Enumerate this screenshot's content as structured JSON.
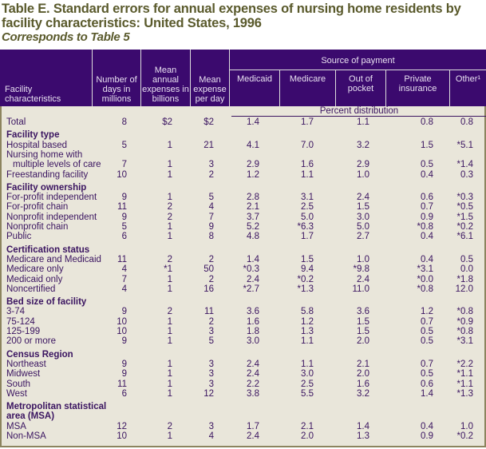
{
  "title": "Table E.  Standard errors for annual expenses of nursing home residents by facility characteristics: United States, 1996",
  "subtitle": "Corresponds to Table 5",
  "colors": {
    "header_bg": "#3b0a6e",
    "body_bg": "#e9e6da",
    "title": "#5a5a2c",
    "text": "#3a1460"
  },
  "header": {
    "facility": "Facility characteristics",
    "days": "Number of days in millions",
    "annual": "Mean annual expenses in billions",
    "perday": "Mean expense per day",
    "source": "Source of payment",
    "medicaid": "Medicaid",
    "medicare": "Medicare",
    "oop": "Out of pocket",
    "private": "Private insurance",
    "other": "Other¹"
  },
  "percent_distribution": "Percent distribution",
  "rows": [
    {
      "type": "data",
      "label": "Total",
      "v": [
        "8",
        "$2",
        "$2",
        "1.4",
        "1.7",
        "1.1",
        "0.8",
        "0.8"
      ]
    },
    {
      "type": "sec",
      "label": "Facility type"
    },
    {
      "type": "data",
      "label": "Hospital based",
      "v": [
        "5",
        "1",
        "21",
        "4.1",
        "7.0",
        "3.2",
        "1.5",
        "*5.1"
      ]
    },
    {
      "type": "data",
      "label": "Nursing home with",
      "v": [
        "",
        "",
        "",
        "",
        "",
        "",
        "",
        ""
      ]
    },
    {
      "type": "indent",
      "label": "multiple levels of care",
      "v": [
        "7",
        "1",
        "3",
        "2.9",
        "1.6",
        "2.9",
        "0.5",
        "*1.4"
      ]
    },
    {
      "type": "data",
      "label": "Freestanding facility",
      "v": [
        "10",
        "1",
        "2",
        "1.2",
        "1.1",
        "1.0",
        "0.4",
        "0.3"
      ]
    },
    {
      "type": "sec",
      "label": "Facility ownership"
    },
    {
      "type": "data",
      "label": "For-profit independent",
      "v": [
        "9",
        "1",
        "5",
        "2.8",
        "3.1",
        "2.4",
        "0.6",
        "*0.3"
      ]
    },
    {
      "type": "data",
      "label": "For-profit chain",
      "v": [
        "11",
        "2",
        "4",
        "2.1",
        "2.5",
        "1.5",
        "0.7",
        "*0.5"
      ]
    },
    {
      "type": "data",
      "label": "Nonprofit independent",
      "v": [
        "9",
        "2",
        "7",
        "3.7",
        "5.0",
        "3.0",
        "0.9",
        "*1.5"
      ]
    },
    {
      "type": "data",
      "label": "Nonprofit chain",
      "v": [
        "5",
        "1",
        "9",
        "5.2",
        "*6.3",
        "5.0",
        "*0.8",
        "*0.2"
      ]
    },
    {
      "type": "data",
      "label": "Public",
      "v": [
        "6",
        "1",
        "8",
        "4.8",
        "1.7",
        "2.7",
        "0.4",
        "*6.1"
      ]
    },
    {
      "type": "sec",
      "label": "Certification status"
    },
    {
      "type": "data",
      "label": "Medicare and Medicaid",
      "v": [
        "11",
        "2",
        "2",
        "1.4",
        "1.5",
        "1.0",
        "0.4",
        "0.5"
      ]
    },
    {
      "type": "data",
      "label": "Medicare only",
      "v": [
        "4",
        "*1",
        "50",
        "*0.3",
        "9.4",
        "*9.8",
        "*3.1",
        "0.0"
      ]
    },
    {
      "type": "data",
      "label": "Medicaid only",
      "v": [
        "7",
        "1",
        "2",
        "2.4",
        "*0.2",
        "2.4",
        "*0.0",
        "*1.8"
      ]
    },
    {
      "type": "data",
      "label": "Noncertified",
      "v": [
        "4",
        "1",
        "16",
        "*2.7",
        "*1.3",
        "11.0",
        "*0.8",
        "12.0"
      ]
    },
    {
      "type": "sec",
      "label": "Bed size of facility"
    },
    {
      "type": "data",
      "label": "3-74",
      "v": [
        "9",
        "2",
        "11",
        "3.6",
        "5.8",
        "3.6",
        "1.2",
        "*0.8"
      ]
    },
    {
      "type": "data",
      "label": "75-124",
      "v": [
        "10",
        "1",
        "2",
        "1.6",
        "1.2",
        "1.5",
        "0.7",
        "*0.9"
      ]
    },
    {
      "type": "data",
      "label": "125-199",
      "v": [
        "10",
        "1",
        "3",
        "1.8",
        "1.3",
        "1.5",
        "0.5",
        "*0.8"
      ]
    },
    {
      "type": "data",
      "label": "200 or more",
      "v": [
        "9",
        "1",
        "5",
        "3.0",
        "1.1",
        "2.0",
        "0.5",
        "*3.1"
      ]
    },
    {
      "type": "sec",
      "label": "Census Region"
    },
    {
      "type": "data",
      "label": "Northeast",
      "v": [
        "9",
        "1",
        "3",
        "2.4",
        "1.1",
        "2.1",
        "0.7",
        "*2.2"
      ]
    },
    {
      "type": "data",
      "label": "Midwest",
      "v": [
        "9",
        "1",
        "3",
        "2.4",
        "3.0",
        "2.0",
        "0.5",
        "*1.1"
      ]
    },
    {
      "type": "data",
      "label": "South",
      "v": [
        "11",
        "1",
        "3",
        "2.2",
        "2.5",
        "1.6",
        "0.6",
        "*1.1"
      ]
    },
    {
      "type": "data",
      "label": "West",
      "v": [
        "6",
        "1",
        "12",
        "3.8",
        "5.5",
        "3.2",
        "1.4",
        "*1.3"
      ]
    },
    {
      "type": "sec",
      "label": "Metropolitan statistical"
    },
    {
      "type": "sec2",
      "label": "area (MSA)"
    },
    {
      "type": "data",
      "label": "MSA",
      "v": [
        "12",
        "2",
        "3",
        "1.7",
        "2.1",
        "1.4",
        "0.4",
        "1.0"
      ]
    },
    {
      "type": "data",
      "label": "Non-MSA",
      "v": [
        "10",
        "1",
        "4",
        "2.4",
        "2.0",
        "1.3",
        "0.9",
        "*0.2"
      ]
    }
  ]
}
